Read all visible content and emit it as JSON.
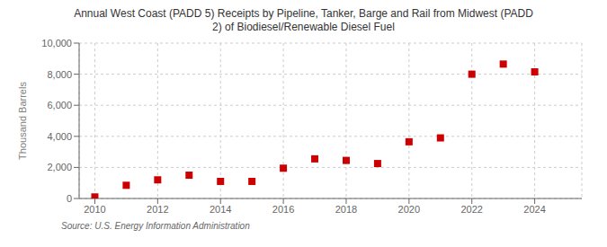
{
  "chart_data": {
    "type": "scatter",
    "title": "Annual West Coast (PADD 5) Receipts by Pipeline, Tanker, Barge and Rail from Midwest (PADD\n2) of Biodiesel/Renewable Diesel Fuel",
    "y_label": "Thousand Barrels",
    "annotations": [
      "Source: U.S. Energy Information Administration"
    ],
    "x": [
      2010,
      2011,
      2012,
      2013,
      2014,
      2015,
      2016,
      2017,
      2018,
      2019,
      2020,
      2021,
      2022,
      2023,
      2024
    ],
    "values": [
      100,
      850,
      1200,
      1500,
      1100,
      1100,
      1950,
      2550,
      2450,
      2250,
      3650,
      3900,
      8000,
      8650,
      8150
    ],
    "color": "#cc0000",
    "marker": "square",
    "xlim": [
      2009.5,
      2025.5
    ],
    "xticks": [
      2010,
      2012,
      2014,
      2016,
      2018,
      2020,
      2022,
      2024
    ],
    "ylim": [
      0,
      10000
    ],
    "yticks": [
      0,
      {
        "value": 2000,
        "label": "2,000"
      },
      {
        "value": 4000,
        "label": "4,000"
      },
      {
        "value": 6000,
        "label": "6,000"
      },
      {
        "value": 8000,
        "label": "8,000"
      },
      {
        "value": 10000,
        "label": "10,000"
      }
    ],
    "grid": true
  }
}
